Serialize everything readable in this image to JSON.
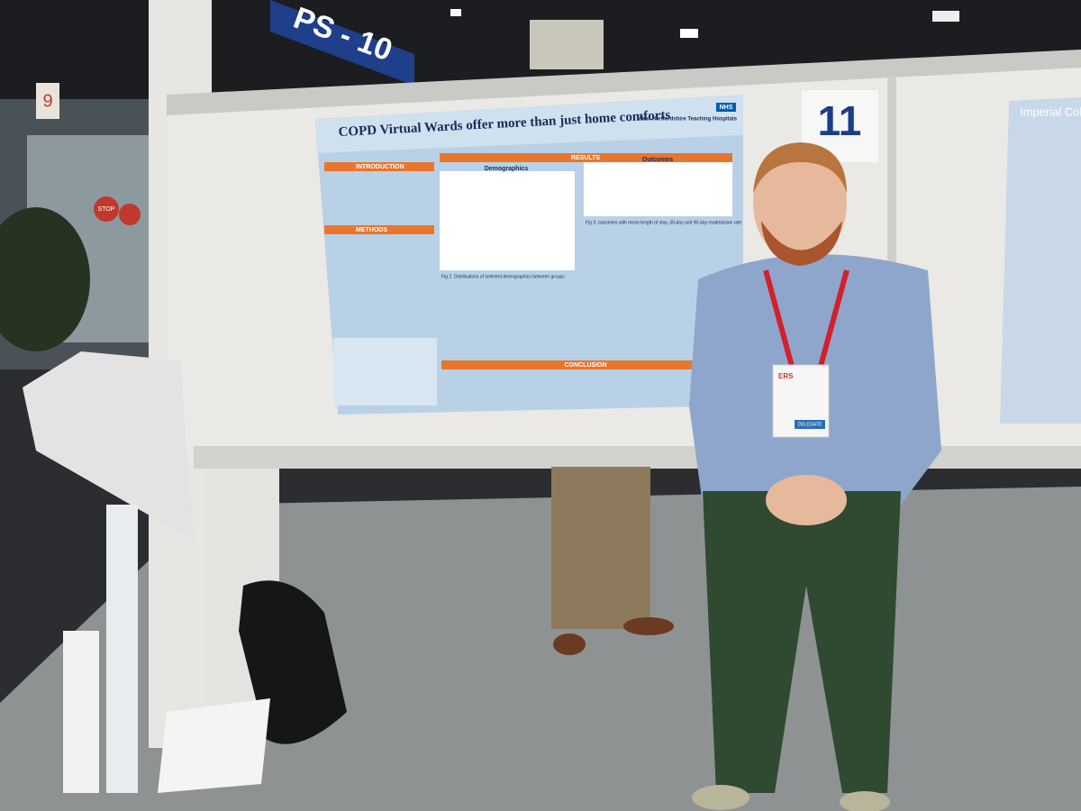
{
  "signs": {
    "booth": "PS - 10",
    "board_number": "11",
    "column_number": "9",
    "street_sign": "STOP"
  },
  "poster": {
    "logo": "NHS",
    "org": "West Hertfordshire Teaching Hospitals",
    "title": "COPD Virtual Wards offer more than just home comforts",
    "sections": {
      "introduction": "INTRODUCTION",
      "methods": "METHODS",
      "results": "RESULTS",
      "demographics": "Demographics",
      "outcomes": "Outcomes",
      "conclusion": "CONCLUSION"
    },
    "fig2": "Fig 2. Distributions of selected demographics between groups",
    "fig3": "Fig 3: outcomes with mean length of stay, 30-day and 90-day readmission rate"
  },
  "neighbor_poster": {
    "title": "Imperial College London"
  },
  "badge": {
    "org": "ERS",
    "role": "DELEGATE"
  }
}
